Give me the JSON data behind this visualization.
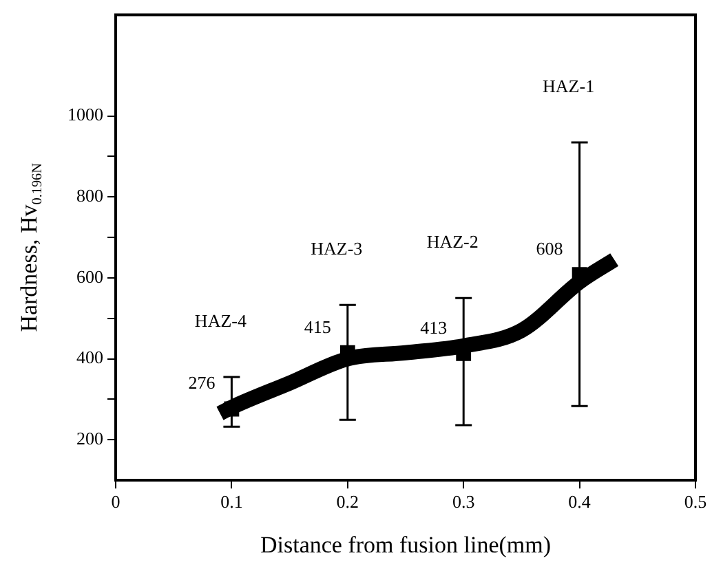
{
  "chart_data": {
    "type": "scatter",
    "xlabel": "Distance from fusion line(mm)",
    "ylabel": "Hardness, Hv$_{0.196N}$",
    "xlim": [
      0,
      0.5
    ],
    "xticks": [
      0,
      0.1,
      0.2,
      0.3,
      0.4,
      0.5
    ],
    "ylim": [
      100,
      1250
    ],
    "yticks": [
      200,
      {
        "value": 300,
        "label": null
      },
      400,
      {
        "value": 500,
        "label": null
      },
      600,
      {
        "value": 700,
        "label": null
      },
      800,
      {
        "value": 900,
        "label": null
      },
      1000
    ],
    "grid": false,
    "legend": false,
    "series": [
      {
        "type": "line",
        "color": "#000000",
        "x": [
          0.09,
          0.1,
          0.15,
          0.2,
          0.25,
          0.3,
          0.35,
          0.4,
          0.43
        ],
        "values": [
          265,
          280,
          340,
          400,
          415,
          432,
          470,
          590,
          645
        ],
        "marker": "none"
      },
      {
        "color": "#000000",
        "x": [
          0.1,
          0.2,
          0.3,
          0.4
        ],
        "values": [
          276,
          415,
          413,
          608
        ],
        "errors": [
          [
            232,
            355
          ],
          [
            249,
            533
          ],
          [
            236,
            550
          ],
          [
            283,
            935
          ]
        ],
        "marker": "square",
        "data_labels": true
      }
    ],
    "annotations": [
      "HAZ-4",
      "HAZ-3",
      "HAZ-2",
      "HAZ-1"
    ]
  }
}
